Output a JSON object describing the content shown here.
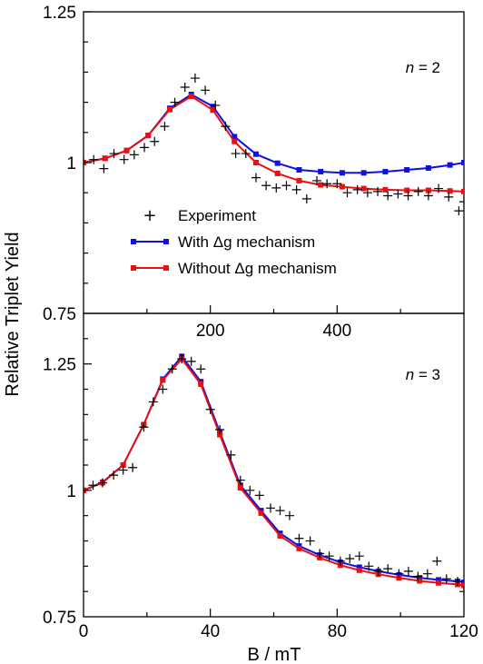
{
  "colors": {
    "with_dg": "#1010e0",
    "without_dg": "#e81010",
    "experiment": "#000000"
  },
  "ylabel": "Relative Triplet Yield",
  "legend": {
    "experiment": "Experiment",
    "with_dg": "With Δg mechanism",
    "without_dg": "Without Δg mechanism"
  },
  "chart_data": [
    {
      "type": "line",
      "panel_label_italic": "n",
      "panel_label_rest": " = 2",
      "xlim": [
        0,
        600
      ],
      "ylim": [
        0.75,
        1.25
      ],
      "x_tick_labels": [
        {
          "value": 200,
          "label": "200"
        },
        {
          "value": 400,
          "label": "400"
        }
      ],
      "x_ticks": [
        100,
        200,
        300,
        400,
        500
      ],
      "y_tick_labels": [
        {
          "value": 1.25,
          "label": "1.25"
        },
        {
          "value": 1.0,
          "label": "1"
        },
        {
          "value": 0.75,
          "label": "0.75"
        }
      ],
      "y_ticks": [
        0.8,
        0.85,
        0.9,
        0.95,
        1.0,
        1.05,
        1.1,
        1.15,
        1.2,
        1.25
      ],
      "legend_placement": "center-left",
      "series": [
        {
          "name": "With Δg mechanism",
          "key": "with_dg",
          "x": [
            0,
            34,
            68,
            102,
            136,
            170,
            204,
            238,
            272,
            306,
            340,
            374,
            408,
            442,
            476,
            510,
            544,
            578,
            600
          ],
          "y": [
            1.0,
            1.007,
            1.02,
            1.045,
            1.09,
            1.113,
            1.093,
            1.043,
            1.014,
            0.999,
            0.988,
            0.985,
            0.983,
            0.983,
            0.985,
            0.988,
            0.991,
            0.996,
            1.0
          ]
        },
        {
          "name": "Without Δg mechanism",
          "key": "without_dg",
          "x": [
            0,
            34,
            68,
            102,
            136,
            170,
            204,
            238,
            272,
            306,
            340,
            374,
            408,
            442,
            476,
            510,
            544,
            578,
            600
          ],
          "y": [
            1.0,
            1.007,
            1.02,
            1.045,
            1.088,
            1.11,
            1.087,
            1.035,
            1.0,
            0.982,
            0.97,
            0.963,
            0.96,
            0.957,
            0.955,
            0.954,
            0.954,
            0.953,
            0.952
          ]
        },
        {
          "name": "Experiment",
          "key": "experiment",
          "x": [
            0,
            16,
            32,
            48,
            64,
            80,
            96,
            112,
            128,
            144,
            160,
            176,
            192,
            208,
            224,
            240,
            256,
            272,
            288,
            304,
            320,
            336,
            352,
            368,
            384,
            400,
            416,
            432,
            448,
            464,
            480,
            496,
            512,
            528,
            544,
            560,
            576,
            592,
            600
          ],
          "y": [
            1.0,
            1.005,
            0.99,
            1.015,
            1.005,
            1.013,
            1.025,
            1.035,
            1.06,
            1.1,
            1.125,
            1.14,
            1.12,
            1.095,
            1.06,
            1.015,
            1.015,
            0.975,
            0.962,
            0.958,
            0.962,
            0.955,
            0.94,
            0.97,
            0.965,
            0.965,
            0.95,
            0.955,
            0.95,
            0.952,
            0.945,
            0.948,
            0.945,
            0.952,
            0.945,
            0.957,
            0.943,
            0.92,
            0.935
          ]
        }
      ]
    },
    {
      "type": "line",
      "panel_label_italic": "n",
      "panel_label_rest": " = 3",
      "xlabel": "B / mT",
      "xlim": [
        0,
        120
      ],
      "ylim": [
        0.75,
        1.35
      ],
      "x_tick_labels": [
        {
          "value": 0,
          "label": "0"
        },
        {
          "value": 40,
          "label": "40"
        },
        {
          "value": 80,
          "label": "80"
        },
        {
          "value": 120,
          "label": "120"
        }
      ],
      "x_ticks": [
        20,
        40,
        60,
        80,
        100
      ],
      "y_tick_labels": [
        {
          "value": 1.25,
          "label": "1.25"
        },
        {
          "value": 1.0,
          "label": "1"
        },
        {
          "value": 0.75,
          "label": "0.75"
        }
      ],
      "y_ticks": [
        0.8,
        0.85,
        0.9,
        0.95,
        1.0,
        1.05,
        1.1,
        1.15,
        1.2,
        1.25,
        1.3
      ],
      "series": [
        {
          "name": "With Δg mechanism",
          "key": "with_dg",
          "x": [
            0,
            6,
            12.5,
            19,
            25,
            31,
            37,
            43,
            49.5,
            56,
            62,
            68,
            74.5,
            81,
            87,
            93,
            99.5,
            106,
            112,
            118,
            120
          ],
          "y": [
            1.0,
            1.016,
            1.05,
            1.13,
            1.22,
            1.265,
            1.215,
            1.115,
            1.01,
            0.96,
            0.915,
            0.89,
            0.872,
            0.858,
            0.848,
            0.84,
            0.833,
            0.827,
            0.823,
            0.82,
            0.818
          ]
        },
        {
          "name": "Without Δg mechanism",
          "key": "without_dg",
          "x": [
            0,
            6,
            12.5,
            19,
            25,
            31,
            37,
            43,
            49.5,
            56,
            62,
            68,
            74.5,
            81,
            87,
            93,
            99.5,
            106,
            112,
            118,
            120
          ],
          "y": [
            1.0,
            1.015,
            1.05,
            1.13,
            1.218,
            1.26,
            1.21,
            1.11,
            1.005,
            0.955,
            0.91,
            0.885,
            0.867,
            0.852,
            0.842,
            0.834,
            0.827,
            0.821,
            0.817,
            0.814,
            0.812
          ]
        },
        {
          "name": "Experiment",
          "key": "experiment",
          "x": [
            0,
            3,
            6,
            9.5,
            12.5,
            15.5,
            19,
            22,
            25,
            28,
            31,
            34,
            37,
            40,
            43,
            46.5,
            49.5,
            52.5,
            55.5,
            59,
            62,
            65,
            68,
            71.5,
            74.5,
            77.5,
            81,
            84,
            87,
            90,
            93,
            96,
            99.5,
            102.5,
            105.5,
            108.5,
            111.5,
            114.5,
            118,
            120
          ],
          "y": [
            1.0,
            1.01,
            1.015,
            1.03,
            1.04,
            1.045,
            1.125,
            1.175,
            1.2,
            1.24,
            1.26,
            1.255,
            1.24,
            1.16,
            1.12,
            1.07,
            1.02,
            1.0,
            0.99,
            0.965,
            0.96,
            0.95,
            0.905,
            0.9,
            0.875,
            0.87,
            0.86,
            0.865,
            0.87,
            0.85,
            0.84,
            0.845,
            0.835,
            0.84,
            0.83,
            0.835,
            0.86,
            0.825,
            0.82,
            0.8
          ]
        }
      ]
    }
  ]
}
